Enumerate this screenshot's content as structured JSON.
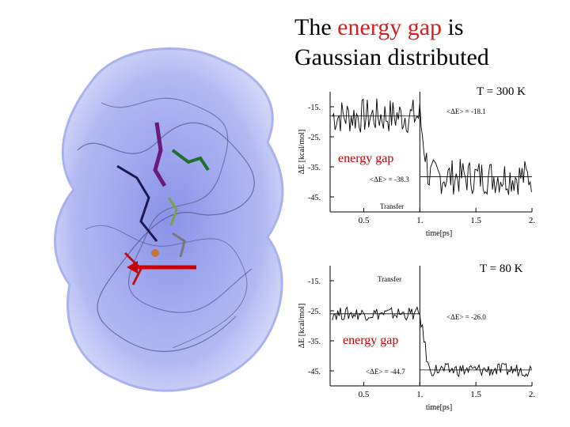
{
  "slide": {
    "title_part1": "The ",
    "title_highlight": "energy gap",
    "title_part2": " is",
    "title_line2": "Gaussian distributed",
    "highlight_color": "#d42020"
  },
  "protein_figure": {
    "icon": "protein-structure-icon",
    "arrow_color": "#cc0000"
  },
  "chart_data": [
    {
      "type": "line",
      "temperature_label": "T = 300 K",
      "overlay_label": "energy gap",
      "ylabel": "ΔE [kcal/mol]",
      "xlabel": "time[ps]",
      "x_ticks": [
        "0.5",
        "1.",
        "1.5",
        "2."
      ],
      "y_ticks": [
        "-15.",
        "-25.",
        "-35.",
        "-45."
      ],
      "xlim": [
        0.2,
        2.0
      ],
      "ylim": [
        -50,
        -10
      ],
      "annotations": [
        "<ΔE> = -18.1",
        "<ΔE> = -38.3",
        "Transfer"
      ],
      "mean_before": -18.1,
      "mean_after": -38.3,
      "transfer_time": 1.0
    },
    {
      "type": "line",
      "temperature_label": "T = 80 K",
      "overlay_label": "energy gap",
      "ylabel": "ΔE [kcal/mol]",
      "xlabel": "time[ps]",
      "x_ticks": [
        "0.5",
        "1.",
        "1.5",
        "2."
      ],
      "y_ticks": [
        "-15.",
        "-25.",
        "-35.",
        "-45."
      ],
      "xlim": [
        0.2,
        2.0
      ],
      "ylim": [
        -50,
        -10
      ],
      "annotations": [
        "Transfer",
        "<ΔE> = -26.0",
        "<ΔE> = -44.7"
      ],
      "mean_before": -26.0,
      "mean_after": -44.7,
      "transfer_time": 1.0
    }
  ]
}
